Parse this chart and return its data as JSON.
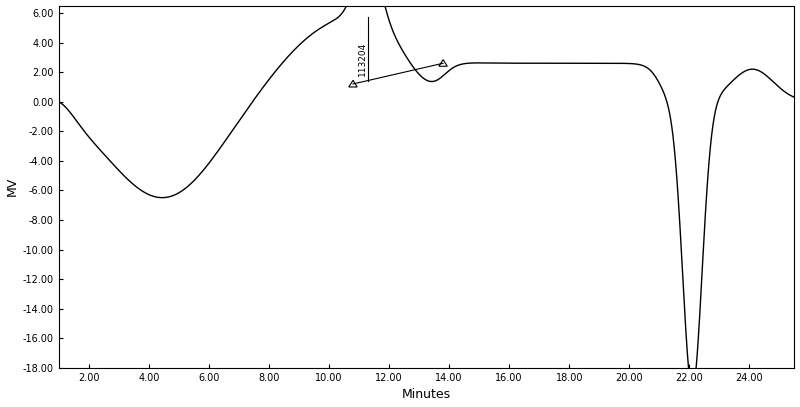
{
  "title": "",
  "xlabel": "Minutes",
  "ylabel": "MV",
  "xlim": [
    1.0,
    25.5
  ],
  "ylim": [
    -18.0,
    6.5
  ],
  "xticks": [
    2.0,
    4.0,
    6.0,
    8.0,
    10.0,
    12.0,
    14.0,
    16.0,
    18.0,
    20.0,
    22.0,
    24.0
  ],
  "yticks": [
    6.0,
    4.0,
    2.0,
    0.0,
    -2.0,
    -4.0,
    -6.0,
    -8.0,
    -10.0,
    -12.0,
    -14.0,
    -16.0,
    -18.0
  ],
  "annotation_text": "113204",
  "peak_x": 11.3,
  "peak_y": 5.7,
  "triangle1_x": 10.8,
  "triangle1_y": 1.2,
  "triangle2_x": 13.8,
  "triangle2_y": 2.6,
  "line_color": "#000000",
  "bg_color": "#ffffff"
}
